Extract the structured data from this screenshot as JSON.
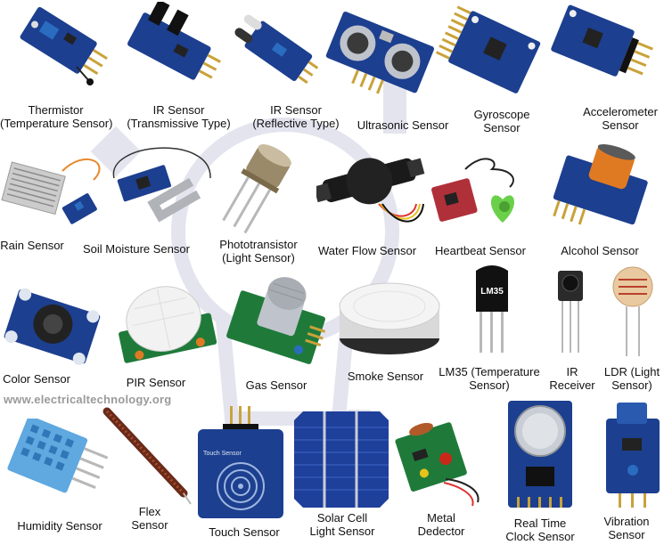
{
  "watermark": "www.electricaltechnology.org",
  "colors": {
    "pcb_blue": "#1c3f8f",
    "pcb_green": "#1f7a3a",
    "pin_gold": "#c9a23a",
    "label_text": "#111111",
    "watermark_text": "#9a9a9a"
  },
  "sensors": [
    {
      "icon": "thermistor-icon",
      "lines": [
        "Thermistor",
        "(Temperature Sensor)"
      ]
    },
    {
      "icon": "ir-transmissive-icon",
      "lines": [
        "IR Sensor",
        "(Transmissive Type)"
      ]
    },
    {
      "icon": "ir-reflective-icon",
      "lines": [
        "IR Sensor",
        "(Reflective Type)"
      ]
    },
    {
      "icon": "ultrasonic-icon",
      "lines": [
        "Ultrasonic Sensor"
      ]
    },
    {
      "icon": "gyroscope-icon",
      "lines": [
        "Gyroscope",
        "Sensor"
      ]
    },
    {
      "icon": "accelerometer-icon",
      "lines": [
        "Accelerometer",
        "Sensor"
      ]
    },
    {
      "icon": "rain-icon",
      "lines": [
        "Rain Sensor"
      ]
    },
    {
      "icon": "soil-moisture-icon",
      "lines": [
        "Soil Moisture Sensor"
      ]
    },
    {
      "icon": "phototransistor-icon",
      "lines": [
        "Phototransistor",
        "(Light Sensor)"
      ]
    },
    {
      "icon": "water-flow-icon",
      "lines": [
        "Water Flow Sensor"
      ]
    },
    {
      "icon": "heartbeat-icon",
      "lines": [
        "Heartbeat Sensor"
      ]
    },
    {
      "icon": "alcohol-icon",
      "lines": [
        "Alcohol Sensor"
      ]
    },
    {
      "icon": "color-sensor-icon",
      "lines": [
        "Color Sensor"
      ]
    },
    {
      "icon": "pir-icon",
      "lines": [
        "PIR Sensor"
      ]
    },
    {
      "icon": "gas-sensor-icon",
      "lines": [
        "Gas Sensor"
      ]
    },
    {
      "icon": "smoke-sensor-icon",
      "lines": [
        "Smoke Sensor"
      ]
    },
    {
      "icon": "lm35-icon",
      "chip_text": "LM35",
      "lines": [
        "LM35 (Temperature",
        "Sensor)"
      ]
    },
    {
      "icon": "ir-receiver-icon",
      "lines": [
        "IR",
        "Receiver"
      ]
    },
    {
      "icon": "ldr-icon",
      "lines": [
        "LDR (Light",
        "Sensor)"
      ]
    },
    {
      "icon": "humidity-icon",
      "lines": [
        "Humidity Sensor"
      ]
    },
    {
      "icon": "flex-sensor-icon",
      "lines": [
        "Flex",
        "Sensor"
      ]
    },
    {
      "icon": "touch-sensor-icon",
      "chip_text": "Touch Sensor",
      "lines": [
        "Touch Sensor"
      ]
    },
    {
      "icon": "solar-cell-icon",
      "lines": [
        "Solar Cell",
        "Light Sensor"
      ]
    },
    {
      "icon": "metal-detector-icon",
      "lines": [
        "Metal",
        "Dedector"
      ]
    },
    {
      "icon": "rtc-icon",
      "lines": [
        "Real Time",
        "Clock Sensor"
      ]
    },
    {
      "icon": "vibration-icon",
      "lines": [
        "Vibration",
        "Sensor"
      ]
    }
  ]
}
